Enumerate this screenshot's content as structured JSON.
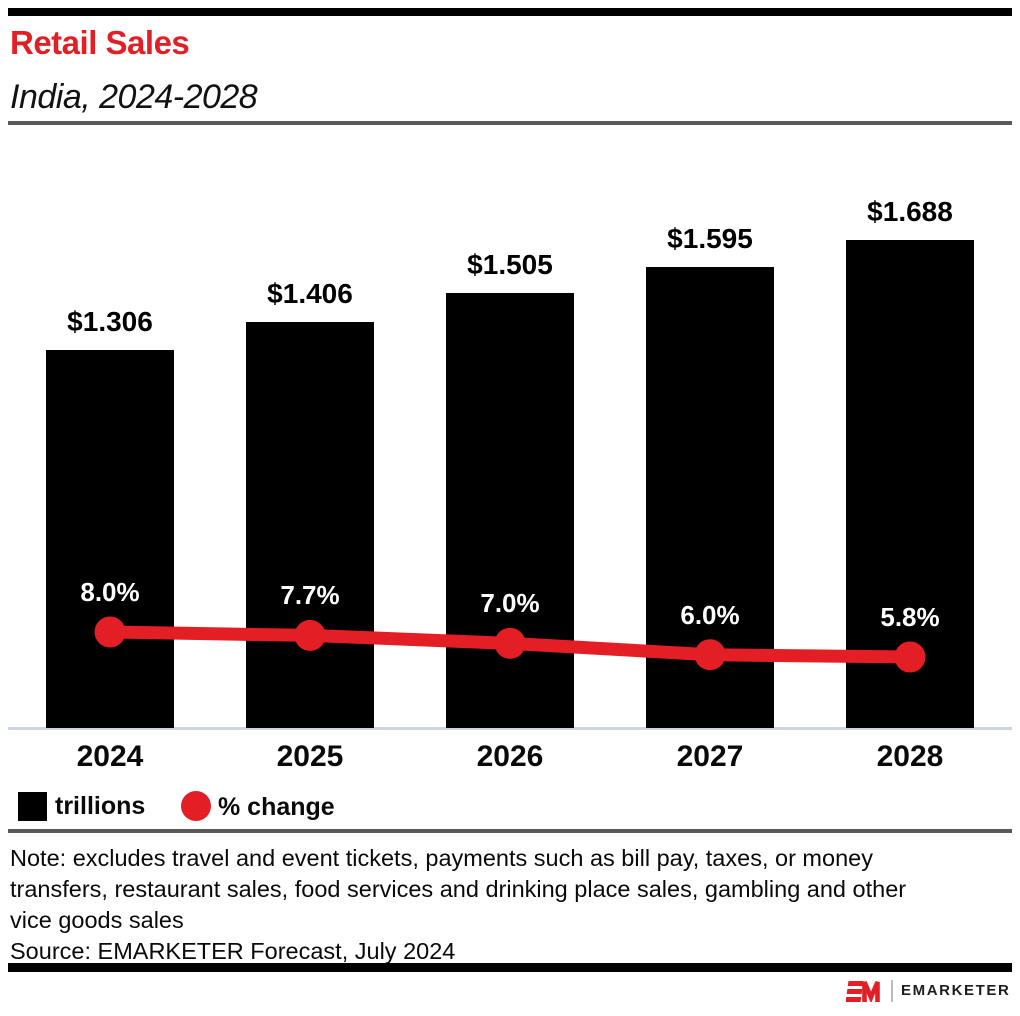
{
  "header": {
    "title": "Retail Sales",
    "subtitle": "India, 2024-2028"
  },
  "chart_data": {
    "type": "bar",
    "title": "Retail Sales",
    "subtitle": "India, 2024-2028",
    "categories": [
      "2024",
      "2025",
      "2026",
      "2027",
      "2028"
    ],
    "series": [
      {
        "name": "trillions",
        "type": "bar",
        "unit": "$ trillions",
        "values": [
          1.306,
          1.406,
          1.505,
          1.595,
          1.688
        ],
        "labels": [
          "$1.306",
          "$1.406",
          "$1.505",
          "$1.595",
          "$1.688"
        ],
        "color": "#000000"
      },
      {
        "name": "% change",
        "type": "line",
        "unit": "%",
        "values": [
          8.0,
          7.7,
          7.0,
          6.0,
          5.8
        ],
        "labels": [
          "8.0%",
          "7.7%",
          "7.0%",
          "6.0%",
          "5.8%"
        ],
        "color": "#e31e24"
      }
    ],
    "ylim": [
      0,
      2.5
    ],
    "grid": false,
    "legend_position": "bottom-left"
  },
  "legend": {
    "items": [
      {
        "label": "trillions",
        "swatch": "square-icon",
        "color": "#000000"
      },
      {
        "label": "% change",
        "swatch": "circle-icon",
        "color": "#e31e24"
      }
    ]
  },
  "note": {
    "lines": [
      "Note: excludes travel and event tickets, payments such as bill pay, taxes, or money",
      "transfers, restaurant sales, food services and drinking place sales, gambling and other",
      "vice goods sales"
    ]
  },
  "source": "Source: EMARKETER Forecast, July 2024",
  "footer": {
    "brand": "EMARKETER"
  },
  "colors": {
    "accent_red": "#e31e24",
    "bar_black": "#000000",
    "axis_line": "#ccd3e2",
    "rule_gray": "#595959"
  }
}
